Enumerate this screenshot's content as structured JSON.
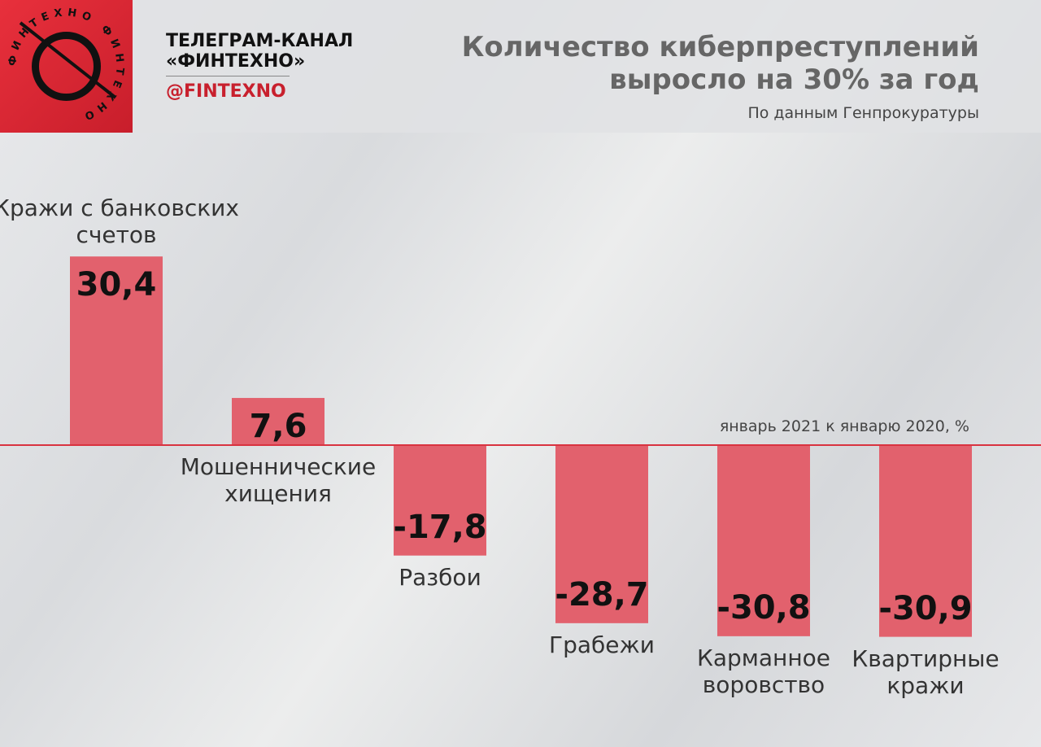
{
  "header": {
    "channel": "ТЕЛЕГРАМ-КАНАЛ\n«ФИНТЕХНО»",
    "handle": "@FINTEXNO",
    "logo_text": "ФИНТЕХНО ФИНТЕХНО"
  },
  "chart_data": {
    "type": "bar",
    "title": "Количество киберпреступлений\nвыросло на 30% за год",
    "subtitle": "По данным Генпрокуратуры",
    "annotation": "январь 2021 к январю 2020, %",
    "categories": [
      "Кражи с банковских\nсчетов",
      "Мошеннические\nхищения",
      "Разбои",
      "Грабежи",
      "Карманное\nворовство",
      "Квартирные\nкражи"
    ],
    "values": [
      30.4,
      7.6,
      -17.8,
      -28.7,
      -30.8,
      -30.9
    ],
    "value_labels": [
      "30,4",
      "7,6",
      "-17,8",
      "-28,7",
      "-30,8",
      "-30,9"
    ],
    "color": "#e2616d",
    "axis_color": "#d93340",
    "ylim": [
      -40,
      40
    ]
  }
}
